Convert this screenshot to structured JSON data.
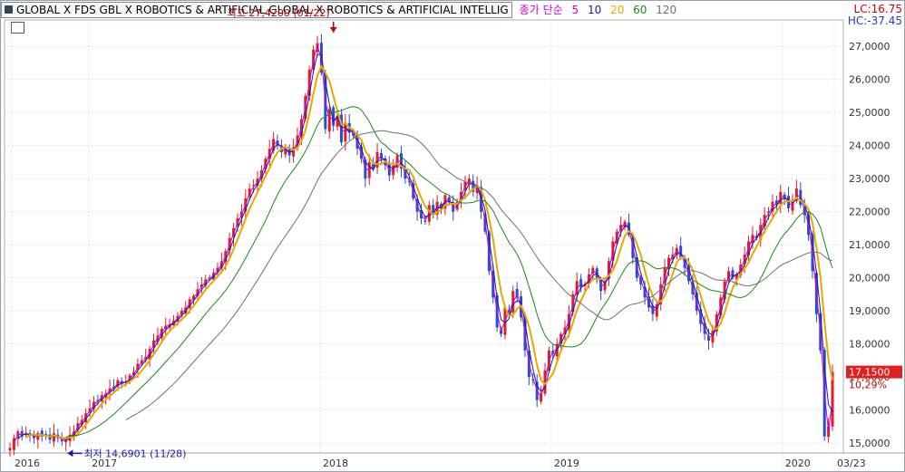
{
  "header": {
    "title": "GLOBAL X FDS GBL X ROBOTICS & ARTIFICIAL  GLOBAL X ROBOTICS & ARTIFICIAL INTELLIG",
    "ma_label": "종가 단순",
    "ma_periods": [
      "5",
      "10",
      "20",
      "60",
      "120"
    ],
    "ma_colors": [
      "#cc00cc",
      "#1a1aa8",
      "#e8a800",
      "#1a8a1a",
      "#707070"
    ],
    "lc": "LC:16.75",
    "hc": "HC:-37.45"
  },
  "chart_data": {
    "type": "candlestick",
    "ylim": [
      14700,
      27800
    ],
    "yticks": [
      15000,
      16000,
      17000,
      18000,
      19000,
      20000,
      21000,
      22000,
      23000,
      24000,
      25000,
      26000,
      27000
    ],
    "ytick_labels": [
      "15,0000",
      "16,0000",
      "17,0000",
      "18,0000",
      "19,0000",
      "20,0000",
      "21,0000",
      "22,0000",
      "23,0000",
      "24,0000",
      "25,0000",
      "26,0000",
      "27,0000"
    ],
    "xticks": [
      {
        "label": "2016",
        "date": "2016-09"
      },
      {
        "label": "2017",
        "date": "2017-01"
      },
      {
        "label": "2018",
        "date": "2018-01"
      },
      {
        "label": "2019",
        "date": "2019-01"
      },
      {
        "label": "2020",
        "date": "2020-01"
      },
      {
        "label": "03/23",
        "date": "2020-03-23"
      }
    ],
    "high_annotation": {
      "text": "최고 27,4200 (01/22)",
      "value": 27420,
      "date": "2018-01-22"
    },
    "low_annotation": {
      "text": "최저 14,6901 (11/28)",
      "value": 14690,
      "date": "2016-11-28"
    },
    "last_price": {
      "text": "17,1500",
      "value": 17150
    },
    "last_change": {
      "text": "10,29%"
    },
    "closes": [
      14850,
      15150,
      15350,
      15200,
      15300,
      15250,
      15150,
      15300,
      15200,
      15250,
      15100,
      15300,
      15150,
      15050,
      15100,
      15250,
      15350,
      15600,
      15700,
      15900,
      16050,
      16250,
      16300,
      16450,
      16500,
      16650,
      16700,
      16900,
      16800,
      16850,
      17050,
      17150,
      17400,
      17500,
      17600,
      17850,
      18100,
      18250,
      18450,
      18550,
      18600,
      18700,
      18850,
      19000,
      19100,
      19350,
      19450,
      19650,
      19800,
      19950,
      20000,
      20150,
      20300,
      20500,
      20800,
      21200,
      21500,
      21800,
      22000,
      22400,
      22700,
      22800,
      23000,
      23250,
      23600,
      23900,
      24200,
      24000,
      23800,
      23900,
      23700,
      23950,
      24300,
      24800,
      25500,
      26300,
      26900,
      27100,
      26200,
      24500,
      25100,
      24600,
      24900,
      24100,
      24700,
      24400,
      24300,
      23900,
      23600,
      23000,
      23500,
      23300,
      23800,
      23600,
      23400,
      23100,
      23400,
      23700,
      23300,
      23000,
      22900,
      22400,
      22000,
      21800,
      21700,
      22200,
      21900,
      22300,
      22100,
      22500,
      22300,
      22000,
      22300,
      22600,
      22900,
      23000,
      22600,
      22800,
      22000,
      21400,
      20200,
      19400,
      18500,
      18300,
      19100,
      18900,
      19600,
      19400,
      18800,
      17800,
      17000,
      16900,
      16300,
      16500,
      17200,
      17800,
      17700,
      18000,
      18300,
      18500,
      18900,
      19500,
      19900,
      19700,
      19800,
      20100,
      20300,
      20000,
      19600,
      19900,
      20500,
      21100,
      21400,
      21600,
      21700,
      21300,
      20600,
      20000,
      19800,
      19400,
      19100,
      18900,
      19200,
      19800,
      20300,
      20600,
      20700,
      20900,
      20600,
      20300,
      19900,
      19500,
      19000,
      18600,
      18300,
      18100,
      18400,
      18900,
      19400,
      19900,
      20200,
      20000,
      20100,
      20400,
      20700,
      21100,
      21300,
      21200,
      21600,
      21900,
      22000,
      22300,
      22200,
      22600,
      22400,
      22100,
      22300,
      22700,
      22200,
      21900,
      21300,
      20200,
      18900,
      17800,
      15200,
      15500,
      17150
    ]
  }
}
